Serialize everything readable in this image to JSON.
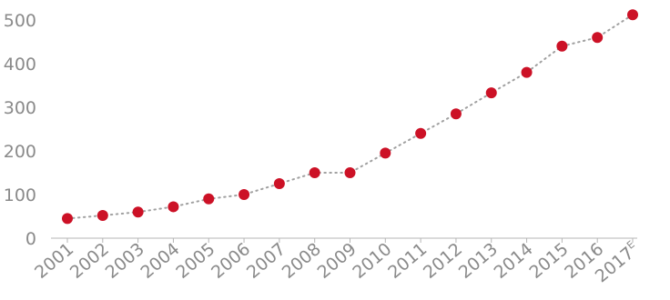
{
  "chart_data": {
    "type": "line",
    "title": "",
    "xlabel": "",
    "ylabel": "",
    "categories": [
      "2001",
      "2002",
      "2003",
      "2004",
      "2005",
      "2006",
      "2007",
      "2008",
      "2009",
      "2010",
      "2011",
      "2012",
      "2013",
      "2014",
      "2015",
      "2016",
      "2017"
    ],
    "category_superscripts": [
      "",
      "",
      "",
      "",
      "",
      "",
      "",
      "",
      "",
      "",
      "",
      "",
      "",
      "",
      "",
      "",
      "E"
    ],
    "series": [
      {
        "values": [
          45,
          52,
          60,
          72,
          90,
          100,
          125,
          150,
          150,
          195,
          240,
          285,
          333,
          380,
          440,
          460,
          512
        ],
        "line_style": "dotted",
        "line_color": "#a0a0a0",
        "marker_color": "#cc1126"
      }
    ],
    "ylim": [
      0,
      500
    ],
    "yticks": [
      0,
      100,
      200,
      300,
      400,
      500
    ],
    "grid": false,
    "legend": "none"
  }
}
